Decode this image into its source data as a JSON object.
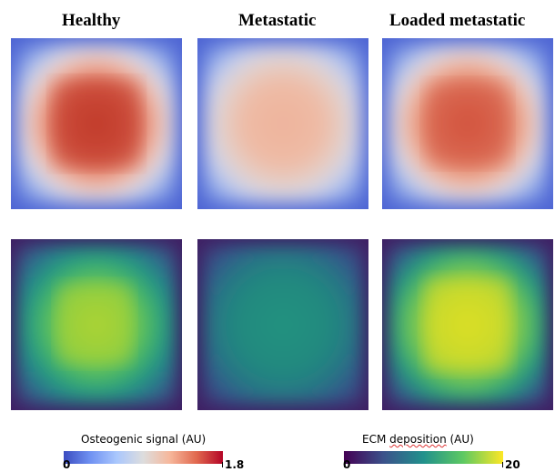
{
  "columns": [
    {
      "title": "Healthy"
    },
    {
      "title": "Metastatic"
    },
    {
      "title": "Loaded metastatic"
    }
  ],
  "rows": [
    {
      "quantity": "Osteogenic signal (AU)",
      "levels": [
        1.6,
        0.95,
        1.4
      ]
    },
    {
      "quantity": "ECM deposition (AU)",
      "levels": [
        14,
        8,
        17
      ]
    }
  ],
  "colorbars": [
    {
      "title_prefix": "Osteogenic signal",
      "title_suffix": " (AU)",
      "min_label": "0",
      "max_label": "1.8",
      "colors": [
        "#3b4cc0",
        "#6f91f2",
        "#aac7fd",
        "#dddddd",
        "#f6b79b",
        "#e1694f",
        "#b40426"
      ]
    },
    {
      "title_prefix": "ECM ",
      "title_squiggle": "deposition",
      "title_suffix": " (AU)",
      "min_label": "0",
      "max_label": "20",
      "colors": [
        "#440154",
        "#3b528b",
        "#21918c",
        "#5ec962",
        "#fde725"
      ]
    }
  ]
}
